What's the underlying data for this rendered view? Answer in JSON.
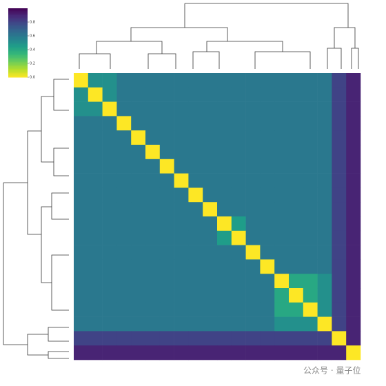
{
  "chart_data": {
    "type": "heatmap",
    "colormap": "viridis_r",
    "colorbar": {
      "ylim": [
        0,
        1
      ],
      "yticks": [
        {
          "value": 0,
          "label": "0.0"
        },
        0.2,
        0.4,
        0.6,
        0.8
      ]
    },
    "matrix": [
      [
        0,
        0.5,
        0.5,
        0.6,
        0.6,
        0.6,
        0.6,
        0.6,
        0.6,
        0.6,
        0.6,
        0.6,
        0.6,
        0.6,
        0.6,
        0.6,
        0.6,
        0.6,
        0.8,
        0.9
      ],
      [
        0.5,
        0,
        0.5,
        0.6,
        0.6,
        0.6,
        0.6,
        0.6,
        0.6,
        0.6,
        0.6,
        0.6,
        0.6,
        0.6,
        0.6,
        0.6,
        0.6,
        0.6,
        0.8,
        0.9
      ],
      [
        0.5,
        0.5,
        0,
        0.6,
        0.6,
        0.6,
        0.6,
        0.6,
        0.6,
        0.6,
        0.6,
        0.6,
        0.6,
        0.6,
        0.6,
        0.6,
        0.6,
        0.6,
        0.8,
        0.9
      ],
      [
        0.6,
        0.6,
        0.6,
        0,
        0.6,
        0.6,
        0.6,
        0.6,
        0.6,
        0.6,
        0.6,
        0.6,
        0.6,
        0.6,
        0.6,
        0.6,
        0.6,
        0.6,
        0.8,
        0.9
      ],
      [
        0.6,
        0.6,
        0.6,
        0.6,
        0,
        0.6,
        0.6,
        0.6,
        0.6,
        0.6,
        0.6,
        0.6,
        0.6,
        0.6,
        0.6,
        0.6,
        0.6,
        0.6,
        0.8,
        0.9
      ],
      [
        0.6,
        0.6,
        0.6,
        0.6,
        0.6,
        0,
        0.6,
        0.6,
        0.6,
        0.6,
        0.6,
        0.6,
        0.6,
        0.6,
        0.6,
        0.6,
        0.6,
        0.6,
        0.8,
        0.9
      ],
      [
        0.6,
        0.6,
        0.6,
        0.6,
        0.6,
        0.6,
        0,
        0.6,
        0.6,
        0.6,
        0.6,
        0.6,
        0.6,
        0.6,
        0.6,
        0.6,
        0.6,
        0.6,
        0.8,
        0.9
      ],
      [
        0.6,
        0.6,
        0.6,
        0.6,
        0.6,
        0.6,
        0.6,
        0,
        0.6,
        0.6,
        0.6,
        0.6,
        0.6,
        0.6,
        0.6,
        0.6,
        0.6,
        0.6,
        0.8,
        0.9
      ],
      [
        0.6,
        0.6,
        0.6,
        0.6,
        0.6,
        0.6,
        0.6,
        0.6,
        0,
        0.6,
        0.6,
        0.6,
        0.6,
        0.6,
        0.6,
        0.6,
        0.6,
        0.6,
        0.8,
        0.9
      ],
      [
        0.6,
        0.6,
        0.6,
        0.6,
        0.6,
        0.6,
        0.6,
        0.6,
        0.6,
        0,
        0.6,
        0.6,
        0.6,
        0.6,
        0.6,
        0.6,
        0.6,
        0.6,
        0.8,
        0.9
      ],
      [
        0.6,
        0.6,
        0.6,
        0.6,
        0.6,
        0.6,
        0.6,
        0.6,
        0.6,
        0.6,
        0,
        0.45,
        0.6,
        0.6,
        0.6,
        0.6,
        0.6,
        0.6,
        0.8,
        0.9
      ],
      [
        0.6,
        0.6,
        0.6,
        0.6,
        0.6,
        0.6,
        0.6,
        0.6,
        0.6,
        0.6,
        0.45,
        0,
        0.6,
        0.6,
        0.6,
        0.6,
        0.6,
        0.6,
        0.8,
        0.9
      ],
      [
        0.6,
        0.6,
        0.6,
        0.6,
        0.6,
        0.6,
        0.6,
        0.6,
        0.6,
        0.6,
        0.6,
        0.6,
        0,
        0.6,
        0.6,
        0.6,
        0.6,
        0.6,
        0.8,
        0.9
      ],
      [
        0.6,
        0.6,
        0.6,
        0.6,
        0.6,
        0.6,
        0.6,
        0.6,
        0.6,
        0.6,
        0.6,
        0.6,
        0.6,
        0,
        0.6,
        0.6,
        0.6,
        0.6,
        0.8,
        0.9
      ],
      [
        0.6,
        0.6,
        0.6,
        0.6,
        0.6,
        0.6,
        0.6,
        0.6,
        0.6,
        0.6,
        0.6,
        0.6,
        0.6,
        0.6,
        0,
        0.4,
        0.4,
        0.5,
        0.8,
        0.9
      ],
      [
        0.6,
        0.6,
        0.6,
        0.6,
        0.6,
        0.6,
        0.6,
        0.6,
        0.6,
        0.6,
        0.6,
        0.6,
        0.6,
        0.6,
        0.4,
        0,
        0.4,
        0.5,
        0.8,
        0.9
      ],
      [
        0.6,
        0.6,
        0.6,
        0.6,
        0.6,
        0.6,
        0.6,
        0.6,
        0.6,
        0.6,
        0.6,
        0.6,
        0.6,
        0.6,
        0.4,
        0.4,
        0,
        0.5,
        0.8,
        0.9
      ],
      [
        0.6,
        0.6,
        0.6,
        0.6,
        0.6,
        0.6,
        0.6,
        0.6,
        0.6,
        0.6,
        0.6,
        0.6,
        0.6,
        0.6,
        0.5,
        0.5,
        0.5,
        0,
        0.8,
        0.9
      ],
      [
        0.8,
        0.8,
        0.8,
        0.8,
        0.8,
        0.8,
        0.8,
        0.8,
        0.8,
        0.8,
        0.8,
        0.8,
        0.8,
        0.8,
        0.8,
        0.8,
        0.8,
        0.8,
        0,
        0.9
      ],
      [
        0.9,
        0.9,
        0.9,
        0.9,
        0.9,
        0.9,
        0.9,
        0.9,
        0.9,
        0.9,
        0.9,
        0.9,
        0.9,
        0.9,
        0.9,
        0.9,
        0.9,
        0.9,
        0.9,
        0
      ]
    ],
    "watermark": "公众号 · 量子位"
  }
}
